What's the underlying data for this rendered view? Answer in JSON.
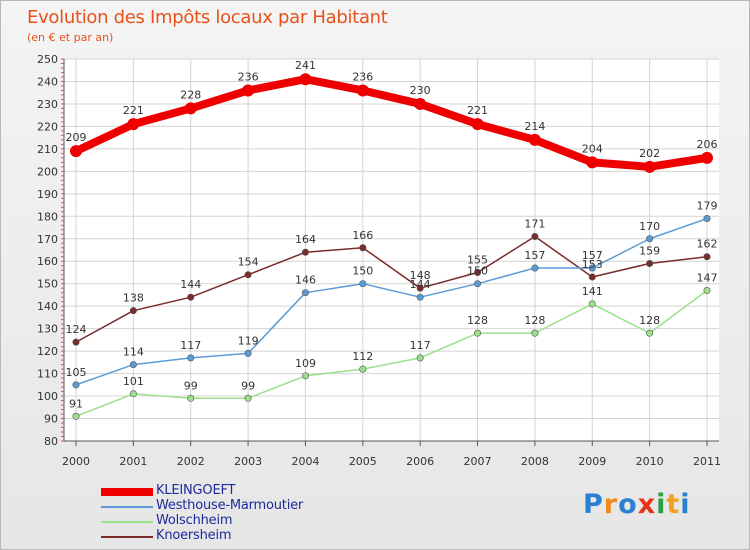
{
  "title": "Evolution des Impôts locaux par Habitant",
  "subtitle": "(en € et par an)",
  "logo": {
    "text": "Proxiti",
    "colors": [
      "#2a7fd0",
      "#f08a1c",
      "#2a7fd0",
      "#e8321a",
      "#2aa048",
      "#f0a21c",
      "#2a7fd0"
    ]
  },
  "chart_data": {
    "type": "line",
    "x": [
      "2000",
      "2001",
      "2002",
      "2003",
      "2004",
      "2005",
      "2006",
      "2007",
      "2008",
      "2009",
      "2010",
      "2011"
    ],
    "ylim": [
      80,
      250
    ],
    "yticks": [
      80,
      90,
      100,
      110,
      120,
      130,
      140,
      150,
      160,
      170,
      180,
      190,
      200,
      210,
      220,
      230,
      240,
      250
    ],
    "grid": true,
    "legend_position": "bottom-left",
    "series": [
      {
        "name": "KLEINGOEFT",
        "color": "#ee0000",
        "values": [
          209,
          221,
          228,
          236,
          241,
          236,
          230,
          221,
          214,
          204,
          202,
          206
        ]
      },
      {
        "name": "Westhouse-Marmoutier",
        "color": "#5b9bd5",
        "values": [
          105,
          114,
          117,
          119,
          146,
          150,
          144,
          150,
          157,
          157,
          170,
          179
        ]
      },
      {
        "name": "Wolschheim",
        "color": "#9be08a",
        "values": [
          91,
          101,
          99,
          99,
          109,
          112,
          117,
          128,
          128,
          141,
          128,
          147
        ]
      },
      {
        "name": "Knoersheim",
        "color": "#7a2b2b",
        "values": [
          124,
          138,
          144,
          154,
          164,
          166,
          148,
          155,
          171,
          153,
          159,
          162
        ]
      }
    ]
  }
}
